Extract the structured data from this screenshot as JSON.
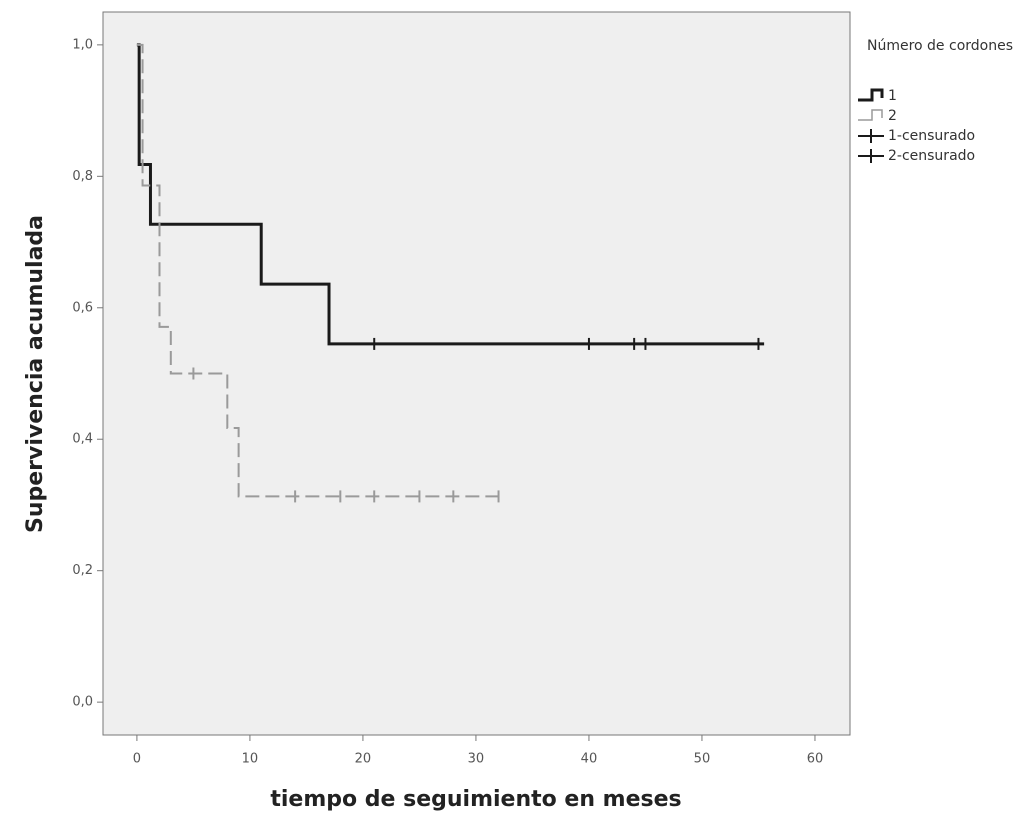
{
  "chart_data": {
    "type": "step",
    "x_label": "tiempo de seguimiento en meses",
    "y_label": "Supervivencia acumulada",
    "legend_title": "Número de cordones",
    "xlim": [
      -3,
      63.1
    ],
    "xticks": [
      0,
      10,
      20,
      30,
      40,
      50,
      60
    ],
    "ylim": [
      -0.05,
      1.05
    ],
    "yticks": [
      {
        "value": 0,
        "label": "0,0"
      },
      {
        "value": 0.2,
        "label": "0,2"
      },
      {
        "value": 0.4,
        "label": "0,4"
      },
      {
        "value": 0.6,
        "label": "0,6"
      },
      {
        "value": 0.8,
        "label": "0,8"
      },
      {
        "value": 1,
        "label": "1,0"
      }
    ],
    "series": [
      {
        "name": "1",
        "color": "#1a1a1a",
        "dashed": false,
        "x": [
          0,
          0.2,
          1.2,
          11,
          17,
          55.5
        ],
        "values": [
          1,
          0.818,
          0.727,
          0.636,
          0.545,
          0.545
        ]
      },
      {
        "name": "2",
        "color": "#9a9a9a",
        "dashed": true,
        "x": [
          0,
          0.5,
          2,
          3,
          8,
          9,
          32
        ],
        "values": [
          1,
          0.786,
          0.571,
          0.5,
          0.417,
          0.313,
          0.313
        ]
      }
    ],
    "censored": [
      {
        "name": "1-censurado",
        "color": "#1a1a1a",
        "x": [
          21,
          40,
          44,
          45,
          55
        ],
        "values": [
          0.545,
          0.545,
          0.545,
          0.545,
          0.545
        ]
      },
      {
        "name": "2-censurado",
        "color": "#9a9a9a",
        "x": [
          5,
          14,
          18,
          21,
          25,
          28,
          32
        ],
        "values": [
          0.5,
          0.313,
          0.313,
          0.313,
          0.313,
          0.313,
          0.313
        ]
      }
    ]
  }
}
